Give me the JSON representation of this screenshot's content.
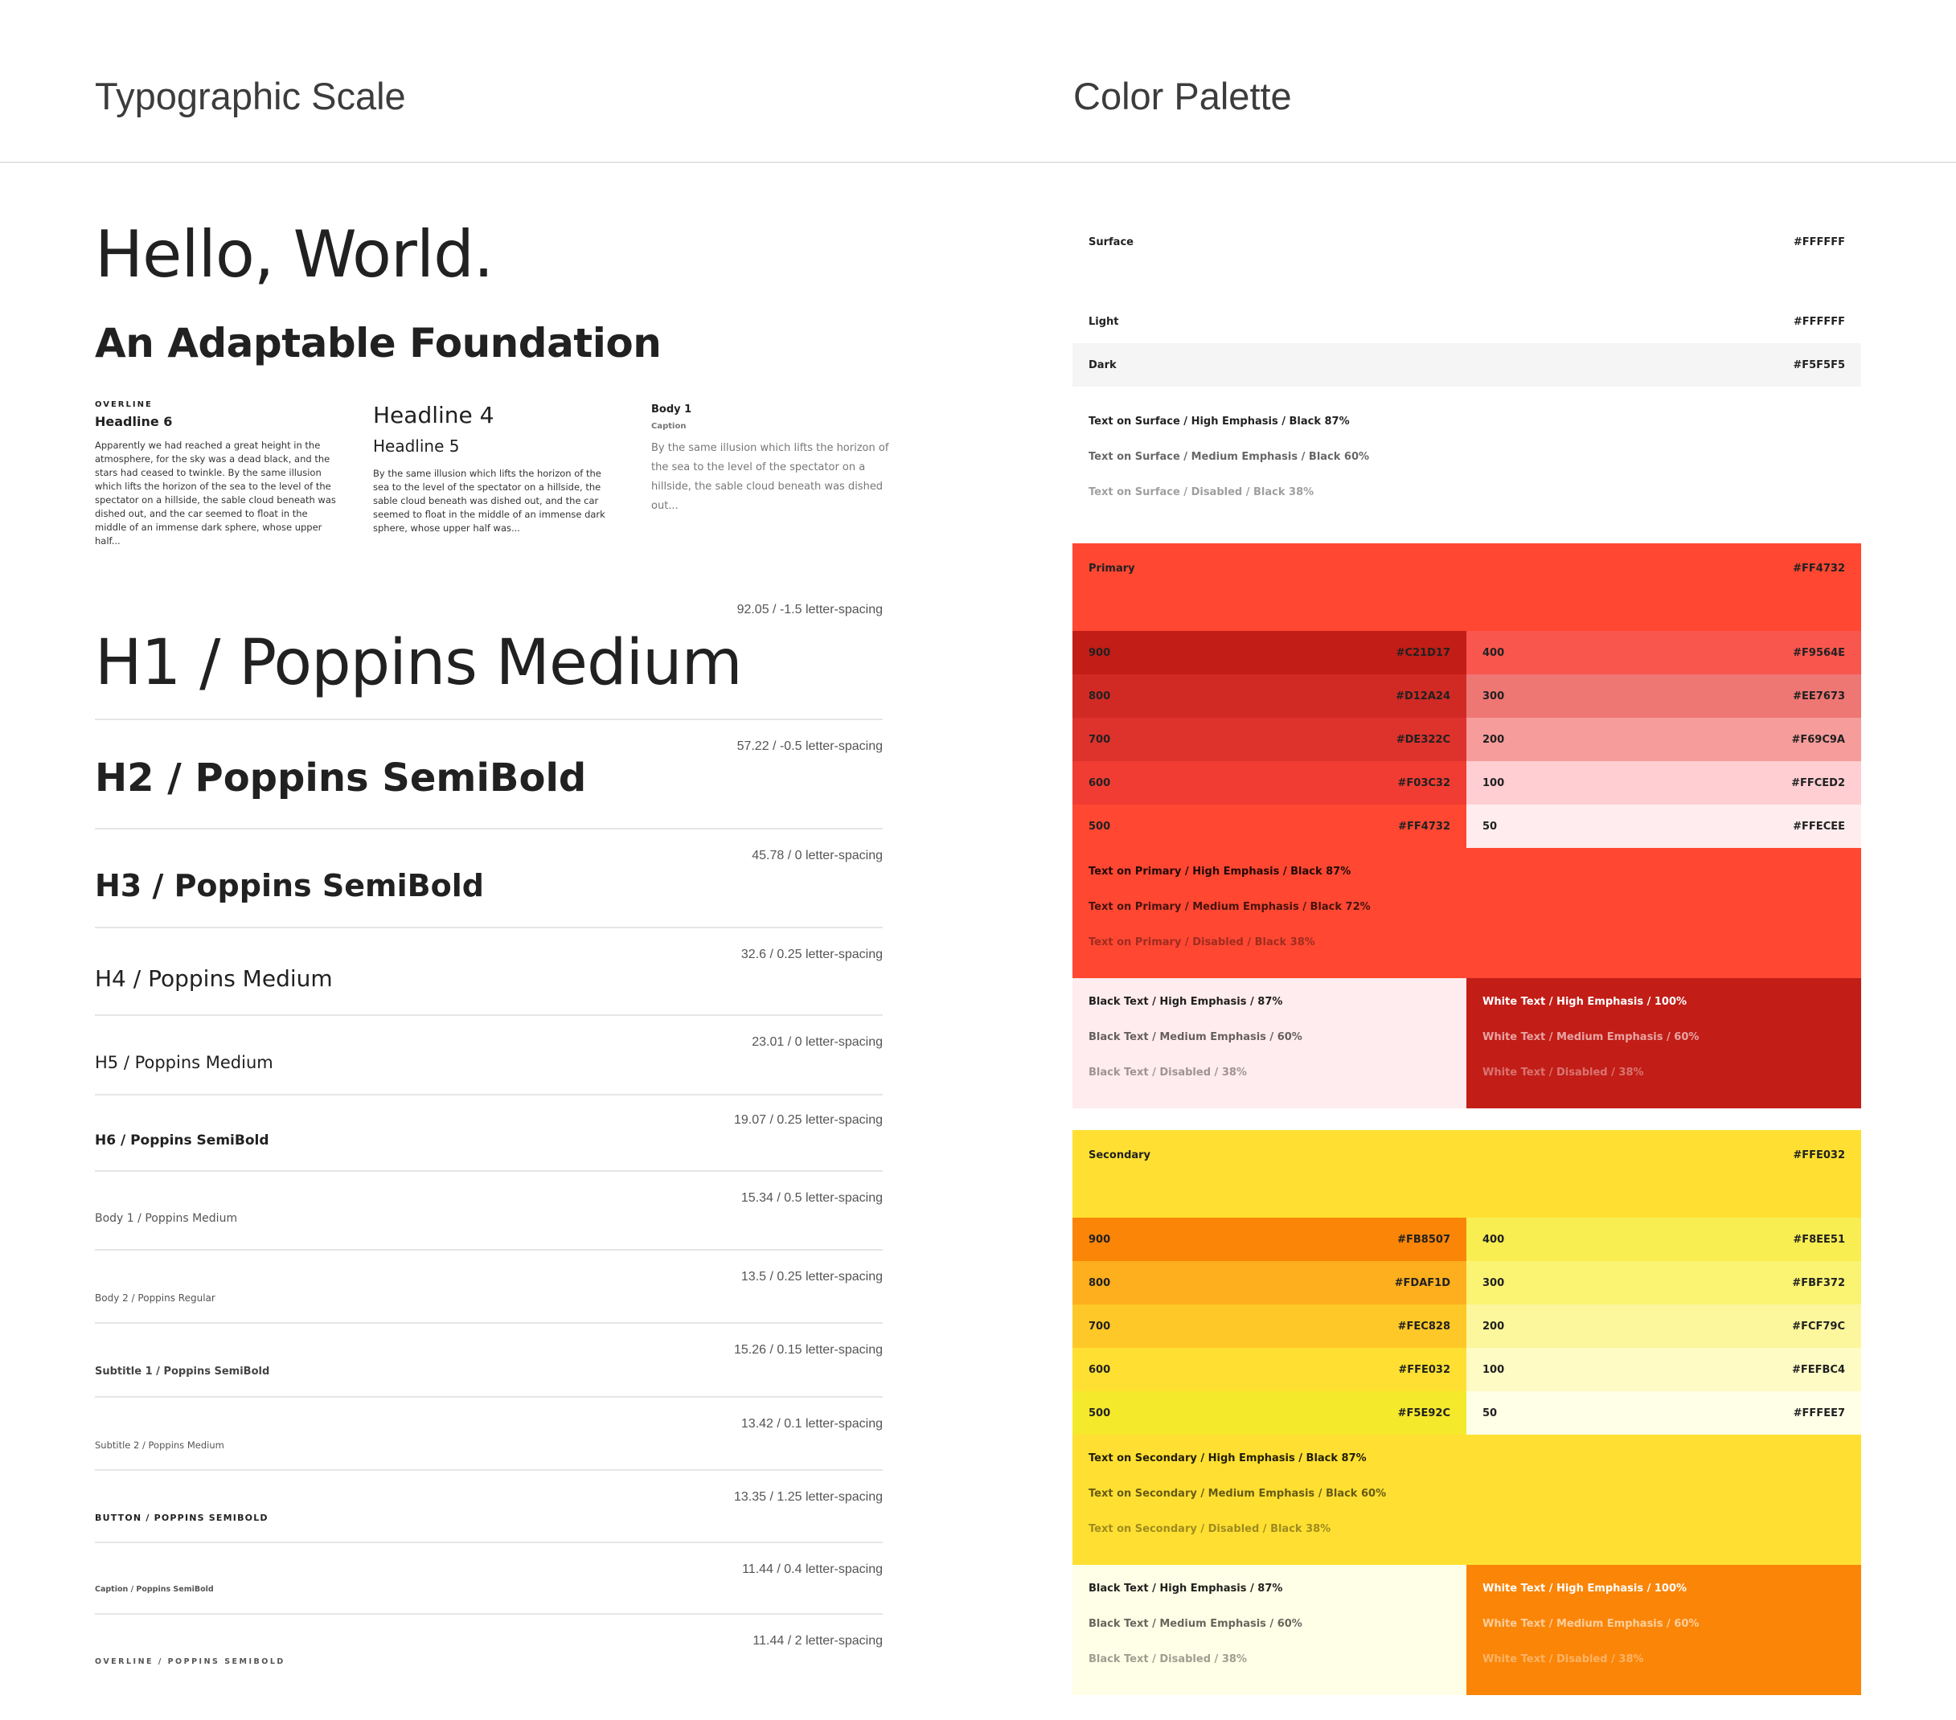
{
  "titles": {
    "typographic": "Typographic Scale",
    "color": "Color Palette"
  },
  "hero": {
    "hello": "Hello, World.",
    "foundation": "An Adaptable Foundation"
  },
  "samples": {
    "a": {
      "overline": "OVERLINE",
      "headline6": "Headline 6",
      "body": "Apparently we had reached a great height in the atmosphere, for the sky was a dead black, and the stars had ceased to twinkle. By the same illusion which lifts the horizon of the sea to the level of the spectator on a hillside, the sable cloud beneath was dished out, and the car seemed to float in the middle of an immense dark sphere, whose upper half..."
    },
    "b": {
      "headline4": "Headline 4",
      "headline5": "Headline 5",
      "body": "By the same illusion which lifts the horizon of the sea to the level of the spectator on a hillside, the sable cloud beneath was dished out, and the car seemed to float in the middle of an immense dark sphere, whose upper half was..."
    },
    "c": {
      "body1": "Body 1",
      "caption": "Caption",
      "body": "By the same illusion which lifts the horizon of the sea to the level of the spectator on a hillside, the sable cloud beneath was dished out..."
    }
  },
  "scale": [
    {
      "label": "H1 / Poppins Medium",
      "spec": "92.05 / -1.5 letter-spacing"
    },
    {
      "label": "H2 / Poppins SemiBold",
      "spec": "57.22 / -0.5 letter-spacing"
    },
    {
      "label": "H3 / Poppins SemiBold",
      "spec": "45.78 / 0 letter-spacing"
    },
    {
      "label": "H4 / Poppins Medium",
      "spec": "32.6 / 0.25 letter-spacing"
    },
    {
      "label": "H5 / Poppins Medium",
      "spec": "23.01 / 0 letter-spacing"
    },
    {
      "label": "H6 / Poppins SemiBold",
      "spec": "19.07 / 0.25 letter-spacing"
    },
    {
      "label": "Body 1 / Poppins Medium",
      "spec": "15.34 / 0.5 letter-spacing"
    },
    {
      "label": "Body 2 / Poppins Regular",
      "spec": "13.5 / 0.25 letter-spacing"
    },
    {
      "label": "Subtitle 1 / Poppins SemiBold",
      "spec": "15.26 / 0.15 letter-spacing"
    },
    {
      "label": "Subtitle 2 / Poppins Medium",
      "spec": "13.42 / 0.1 letter-spacing"
    },
    {
      "label": "BUTTON / POPPINS SEMIBOLD",
      "spec": "13.35 / 1.25 letter-spacing"
    },
    {
      "label": "Caption / Poppins SemiBold",
      "spec": "11.44 / 0.4 letter-spacing"
    },
    {
      "label": "OVERLINE / POPPINS SEMIBOLD",
      "spec": "11.44 / 2 letter-spacing"
    }
  ],
  "surface": {
    "surface": {
      "label": "Surface",
      "hex": "#FFFFFF"
    },
    "light": {
      "label": "Light",
      "hex": "#FFFFFF"
    },
    "dark": {
      "label": "Dark",
      "hex": "#F5F5F5"
    },
    "text_high": "Text on Surface / High Emphasis / Black 87%",
    "text_medium": "Text on Surface / Medium Emphasis / Black 60%",
    "text_disabled": "Text on Surface / Disabled / Black 38%"
  },
  "primary": {
    "main": {
      "label": "Primary",
      "hex": "#FF4732"
    },
    "left": [
      {
        "label": "900",
        "hex": "#C21D17"
      },
      {
        "label": "800",
        "hex": "#D12A24"
      },
      {
        "label": "700",
        "hex": "#DE322C"
      },
      {
        "label": "600",
        "hex": "#F03C32"
      },
      {
        "label": "500",
        "hex": "#FF4732"
      }
    ],
    "right": [
      {
        "label": "400",
        "hex": "#F9564E"
      },
      {
        "label": "300",
        "hex": "#EE7673"
      },
      {
        "label": "200",
        "hex": "#F69C9A"
      },
      {
        "label": "100",
        "hex": "#FFCED2"
      },
      {
        "label": "50",
        "hex": "#FFECEE"
      }
    ],
    "text_high": "Text on Primary / High Emphasis / Black 87%",
    "text_medium": "Text on Primary / Medium Emphasis / Black 72%",
    "text_disabled": "Text on Primary / Disabled / Black 38%",
    "black_high": "Black Text / High Emphasis / 87%",
    "black_medium": "Black Text / Medium Emphasis / 60%",
    "black_disabled": "Black Text /  Disabled / 38%",
    "white_high": "White Text / High Emphasis / 100%",
    "white_medium": "White Text / Medium Emphasis / 60%",
    "white_disabled": "White Text / Disabled / 38%"
  },
  "secondary": {
    "main": {
      "label": "Secondary",
      "hex": "#FFE032"
    },
    "left": [
      {
        "label": "900",
        "hex": "#FB8507"
      },
      {
        "label": "800",
        "hex": "#FDAF1D"
      },
      {
        "label": "700",
        "hex": "#FEC828"
      },
      {
        "label": "600",
        "hex": "#FFE032"
      },
      {
        "label": "500",
        "hex": "#F5E92C"
      }
    ],
    "right": [
      {
        "label": "400",
        "hex": "#F8EE51"
      },
      {
        "label": "300",
        "hex": "#FBF372"
      },
      {
        "label": "200",
        "hex": "#FCF79C"
      },
      {
        "label": "100",
        "hex": "#FEFBC4"
      },
      {
        "label": "50",
        "hex": "#FFFEE7"
      }
    ],
    "text_high": "Text on Secondary / High Emphasis / Black 87%",
    "text_medium": "Text on Secondary / Medium Emphasis / Black 60%",
    "text_disabled": "Text on Secondary / Disabled / Black 38%",
    "black_high": "Black Text / High Emphasis / 87%",
    "black_medium": "Black Text / Medium Emphasis / 60%",
    "black_disabled": "Black Text / Disabled / 38%",
    "white_high": "White Text / High Emphasis / 100%",
    "white_medium": "White Text / Medium Emphasis / 60%",
    "white_disabled": "White Text / Disabled / 38%"
  }
}
